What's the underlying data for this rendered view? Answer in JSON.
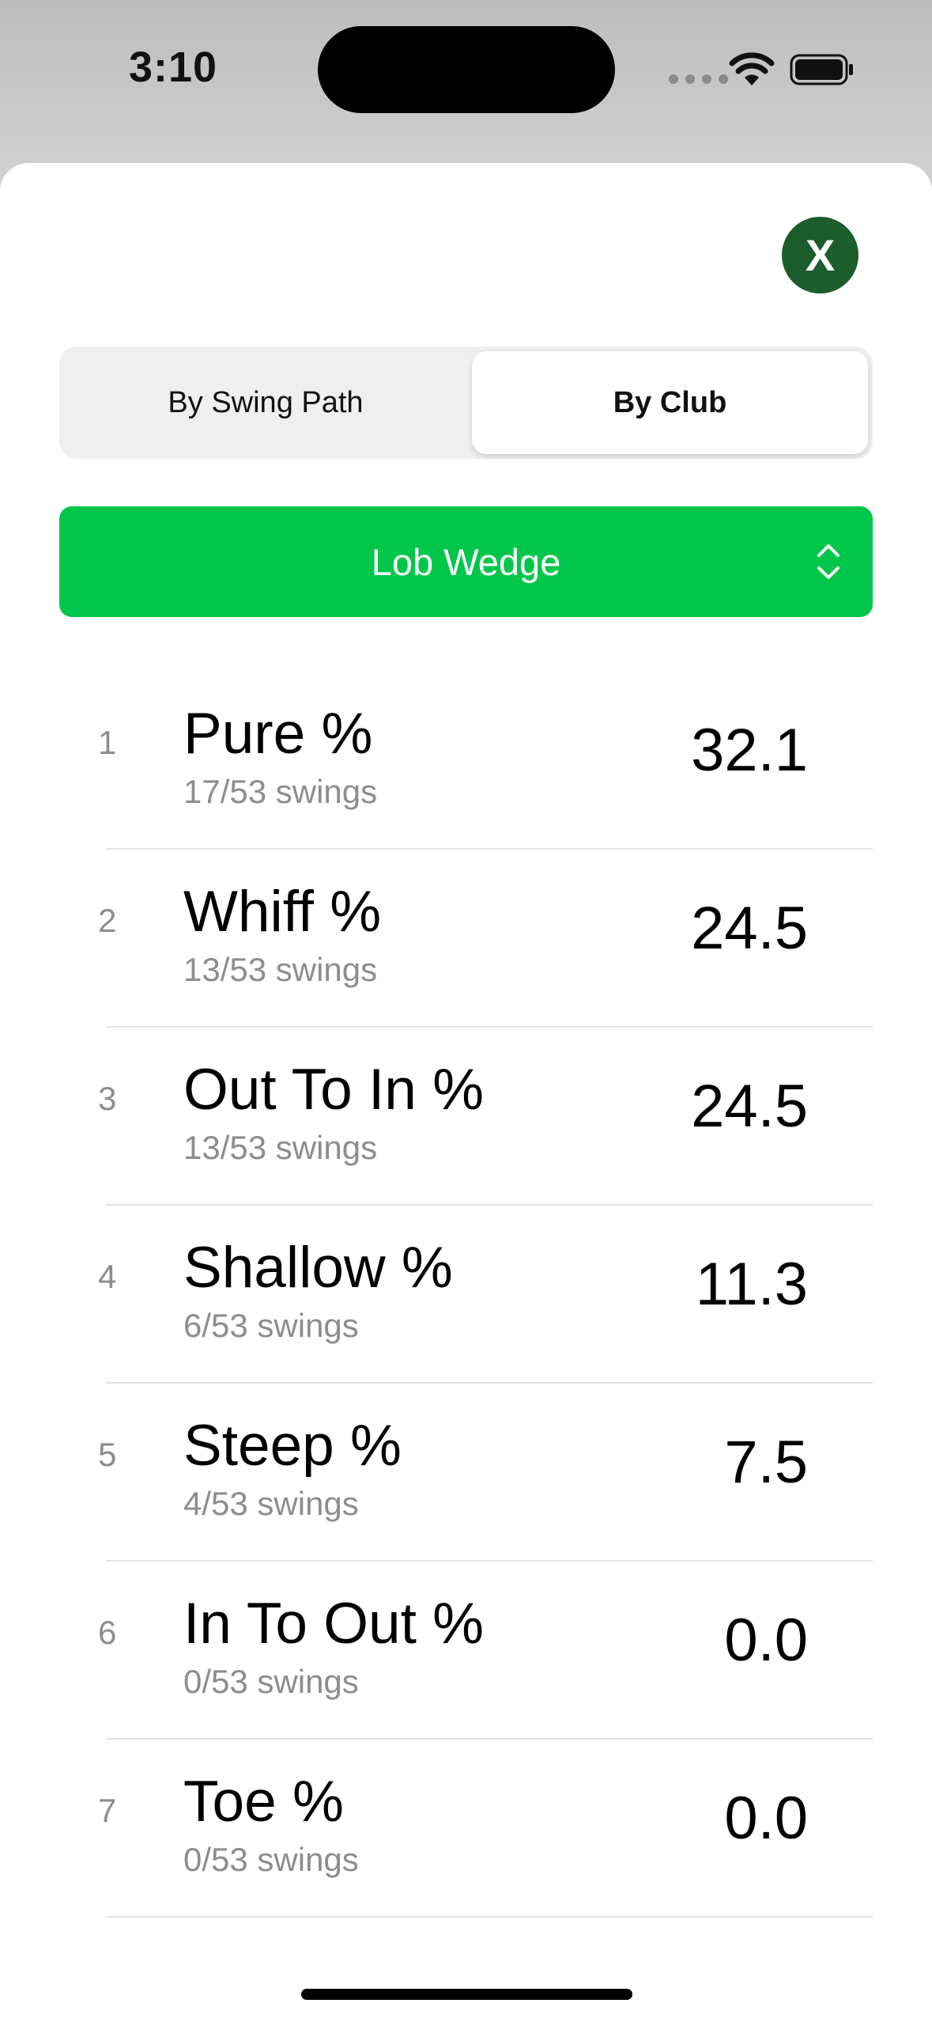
{
  "status_bar": {
    "time": "3:10"
  },
  "close_label": "X",
  "tabs": [
    {
      "label": "By Swing Path",
      "selected": false
    },
    {
      "label": "By Club",
      "selected": true
    }
  ],
  "club_picker": {
    "selected": "Lob Wedge"
  },
  "metrics": [
    {
      "rank": "1",
      "name": "Pure %",
      "swings": "17/53 swings",
      "value": "32.1"
    },
    {
      "rank": "2",
      "name": "Whiff %",
      "swings": "13/53 swings",
      "value": "24.5"
    },
    {
      "rank": "3",
      "name": "Out To In %",
      "swings": "13/53 swings",
      "value": "24.5"
    },
    {
      "rank": "4",
      "name": "Shallow %",
      "swings": "6/53 swings",
      "value": "11.3"
    },
    {
      "rank": "5",
      "name": "Steep %",
      "swings": "4/53 swings",
      "value": "7.5"
    },
    {
      "rank": "6",
      "name": "In To Out %",
      "swings": "0/53 swings",
      "value": "0.0"
    },
    {
      "rank": "7",
      "name": "Toe %",
      "swings": "0/53 swings",
      "value": "0.0"
    }
  ],
  "colors": {
    "accent_green": "#00c74a",
    "close_green": "#1b5e2b"
  }
}
